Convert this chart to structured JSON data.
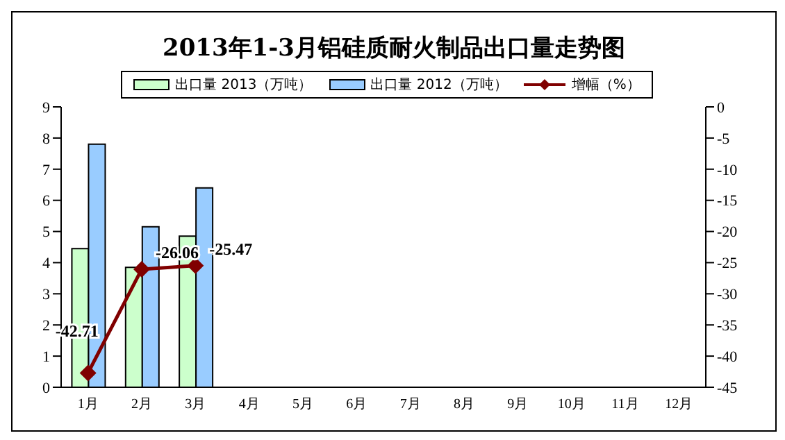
{
  "chart_data": {
    "type": "bar",
    "title": "2013年1-3月铝硅质耐火制品出口量走势图",
    "categories": [
      "1月",
      "2月",
      "3月",
      "4月",
      "5月",
      "6月",
      "7月",
      "8月",
      "9月",
      "10月",
      "11月",
      "12月"
    ],
    "series": [
      {
        "name": "出口量 2013（万吨）",
        "color": "#ccffcc",
        "values": [
          4.45,
          3.85,
          4.85,
          null,
          null,
          null,
          null,
          null,
          null,
          null,
          null,
          null
        ]
      },
      {
        "name": "出口量 2012（万吨）",
        "color": "#99ccff",
        "values": [
          7.8,
          5.15,
          6.4,
          null,
          null,
          null,
          null,
          null,
          null,
          null,
          null,
          null
        ]
      },
      {
        "name": "增幅（%）",
        "type": "line",
        "axis": "y2",
        "color": "#800000",
        "marker": "diamond",
        "values": [
          -42.71,
          -26.06,
          -25.47,
          null,
          null,
          null,
          null,
          null,
          null,
          null,
          null,
          null
        ],
        "value_labels": [
          "-42.71",
          "-26.06",
          "-25.47",
          null,
          null,
          null,
          null,
          null,
          null,
          null,
          null,
          null
        ]
      }
    ],
    "ylim": [
      0,
      9
    ],
    "yticks": [
      0,
      1,
      2,
      3,
      4,
      5,
      6,
      7,
      8,
      9
    ],
    "y2lim": [
      -45,
      0
    ],
    "y2ticks": [
      -45,
      -40,
      -35,
      -30,
      -25,
      -20,
      -15,
      -10,
      -5,
      0
    ],
    "grid": false,
    "legend": "top"
  }
}
